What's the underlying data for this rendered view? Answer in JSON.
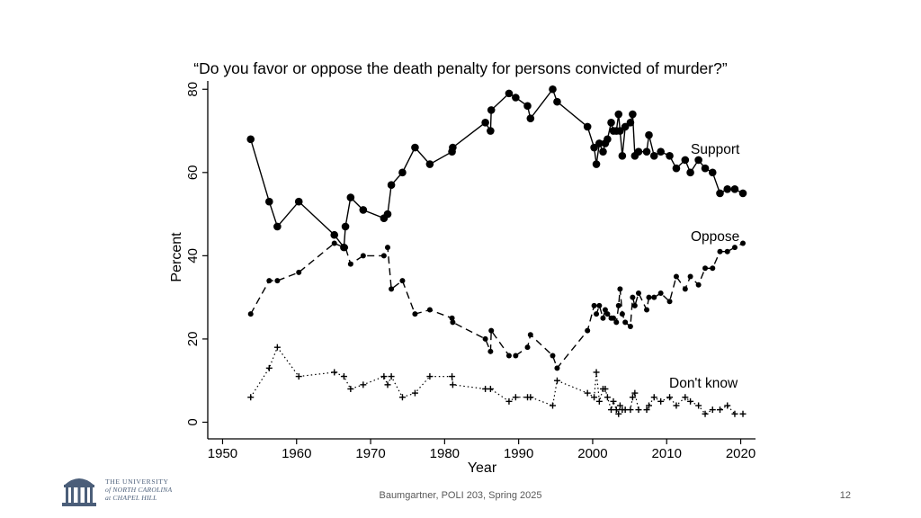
{
  "chart_data": {
    "type": "line",
    "title": "“Do you favor or oppose the death penalty for persons convicted of murder?”",
    "xlabel": "Year",
    "ylabel": "Percent",
    "xlim": [
      1948,
      2022
    ],
    "ylim": [
      -4,
      82
    ],
    "xticks": [
      "1950",
      "1960",
      "1970",
      "1980",
      "1990",
      "2000",
      "2010",
      "2020"
    ],
    "yticks": [
      "0",
      "20",
      "40",
      "60",
      "80"
    ],
    "series": [
      {
        "name": "Support",
        "style": "solid-circles",
        "points": [
          [
            1953.8,
            68
          ],
          [
            1956.3,
            53
          ],
          [
            1957.4,
            47
          ],
          [
            1960.3,
            53
          ],
          [
            1965.1,
            45
          ],
          [
            1966.4,
            42
          ],
          [
            1966.6,
            47
          ],
          [
            1967.3,
            54
          ],
          [
            1969,
            51
          ],
          [
            1971.8,
            49
          ],
          [
            1972.3,
            50
          ],
          [
            1972.8,
            57
          ],
          [
            1974.3,
            60
          ],
          [
            1976,
            66
          ],
          [
            1978,
            62
          ],
          [
            1981,
            65
          ],
          [
            1981.1,
            66
          ],
          [
            1985.5,
            72
          ],
          [
            1986.2,
            70
          ],
          [
            1986.3,
            75
          ],
          [
            1988.7,
            79
          ],
          [
            1989.6,
            78
          ],
          [
            1991.2,
            76
          ],
          [
            1991.6,
            73
          ],
          [
            1994.6,
            80
          ],
          [
            1995.2,
            77
          ],
          [
            1999.3,
            71
          ],
          [
            2000.2,
            66
          ],
          [
            2000.5,
            62
          ],
          [
            2000.9,
            67
          ],
          [
            2001.4,
            65
          ],
          [
            2001.7,
            67
          ],
          [
            2002,
            68
          ],
          [
            2002.5,
            72
          ],
          [
            2002.8,
            70
          ],
          [
            2003.2,
            70
          ],
          [
            2003.5,
            74
          ],
          [
            2003.7,
            70
          ],
          [
            2004,
            64
          ],
          [
            2004.4,
            71
          ],
          [
            2005.1,
            72
          ],
          [
            2005.4,
            74
          ],
          [
            2005.7,
            64
          ],
          [
            2006.2,
            65
          ],
          [
            2007.3,
            65
          ],
          [
            2007.6,
            69
          ],
          [
            2008.3,
            64
          ],
          [
            2009.2,
            65
          ],
          [
            2010.4,
            64
          ],
          [
            2011.3,
            61
          ],
          [
            2012.5,
            63
          ],
          [
            2013.2,
            60
          ],
          [
            2014.3,
            63
          ],
          [
            2015.2,
            61
          ],
          [
            2016.2,
            60
          ],
          [
            2017.2,
            55
          ],
          [
            2018.2,
            56
          ],
          [
            2019.2,
            56
          ],
          [
            2020.3,
            55
          ]
        ]
      },
      {
        "name": "Oppose",
        "style": "dashed-dots",
        "points": [
          [
            1953.8,
            26
          ],
          [
            1956.3,
            34
          ],
          [
            1957.4,
            34
          ],
          [
            1960.3,
            36
          ],
          [
            1965.1,
            43
          ],
          [
            1966.4,
            42
          ],
          [
            1966.6,
            42
          ],
          [
            1967.3,
            38
          ],
          [
            1969,
            40
          ],
          [
            1971.8,
            40
          ],
          [
            1972.3,
            42
          ],
          [
            1972.8,
            32
          ],
          [
            1974.3,
            34
          ],
          [
            1976,
            26
          ],
          [
            1978,
            27
          ],
          [
            1981,
            25
          ],
          [
            1981.1,
            24
          ],
          [
            1985.5,
            20
          ],
          [
            1986.2,
            17
          ],
          [
            1986.3,
            22
          ],
          [
            1988.7,
            16
          ],
          [
            1989.6,
            16
          ],
          [
            1991.2,
            18
          ],
          [
            1991.6,
            21
          ],
          [
            1994.6,
            16
          ],
          [
            1995.2,
            13
          ],
          [
            1999.3,
            22
          ],
          [
            2000.2,
            28
          ],
          [
            2000.5,
            26
          ],
          [
            2000.9,
            28
          ],
          [
            2001.4,
            25
          ],
          [
            2001.7,
            27
          ],
          [
            2002,
            26
          ],
          [
            2002.5,
            25
          ],
          [
            2002.8,
            25
          ],
          [
            2003.2,
            24
          ],
          [
            2003.5,
            28
          ],
          [
            2003.7,
            32
          ],
          [
            2004,
            26
          ],
          [
            2004.4,
            24
          ],
          [
            2005.1,
            23
          ],
          [
            2005.4,
            30
          ],
          [
            2005.7,
            28
          ],
          [
            2006.2,
            31
          ],
          [
            2007.3,
            27
          ],
          [
            2007.6,
            30
          ],
          [
            2008.3,
            30
          ],
          [
            2009.2,
            31
          ],
          [
            2010.4,
            29
          ],
          [
            2011.3,
            35
          ],
          [
            2012.5,
            32
          ],
          [
            2013.2,
            35
          ],
          [
            2014.3,
            33
          ],
          [
            2015.2,
            37
          ],
          [
            2016.2,
            37
          ],
          [
            2017.2,
            41
          ],
          [
            2018.2,
            41
          ],
          [
            2019.2,
            42
          ],
          [
            2020.3,
            43
          ]
        ]
      },
      {
        "name": "Don't know",
        "style": "dotted-plus",
        "points": [
          [
            1953.8,
            6
          ],
          [
            1956.3,
            13
          ],
          [
            1957.4,
            18
          ],
          [
            1960.3,
            11
          ],
          [
            1965.1,
            12
          ],
          [
            1966.4,
            11
          ],
          [
            1967.3,
            8
          ],
          [
            1969,
            9
          ],
          [
            1971.8,
            11
          ],
          [
            1972.3,
            9
          ],
          [
            1972.8,
            11
          ],
          [
            1974.3,
            6
          ],
          [
            1976,
            7
          ],
          [
            1978,
            11
          ],
          [
            1981,
            11
          ],
          [
            1981.1,
            9
          ],
          [
            1985.5,
            8
          ],
          [
            1986.2,
            8
          ],
          [
            1988.7,
            5
          ],
          [
            1989.6,
            6
          ],
          [
            1991.2,
            6
          ],
          [
            1991.6,
            6
          ],
          [
            1994.6,
            4
          ],
          [
            1995.2,
            10
          ],
          [
            1999.3,
            7
          ],
          [
            2000.2,
            6
          ],
          [
            2000.5,
            12
          ],
          [
            2000.9,
            5
          ],
          [
            2001.4,
            8
          ],
          [
            2001.7,
            8
          ],
          [
            2002,
            6
          ],
          [
            2002.5,
            3
          ],
          [
            2002.8,
            5
          ],
          [
            2003.2,
            3
          ],
          [
            2003.5,
            2
          ],
          [
            2003.7,
            4
          ],
          [
            2004,
            3
          ],
          [
            2004.4,
            3
          ],
          [
            2005.1,
            3
          ],
          [
            2005.4,
            6
          ],
          [
            2005.7,
            7
          ],
          [
            2006.2,
            3
          ],
          [
            2007.3,
            3
          ],
          [
            2007.6,
            4
          ],
          [
            2008.3,
            6
          ],
          [
            2009.2,
            5
          ],
          [
            2010.4,
            6
          ],
          [
            2011.3,
            4
          ],
          [
            2012.5,
            6
          ],
          [
            2013.2,
            5
          ],
          [
            2014.3,
            4
          ],
          [
            2015.2,
            2
          ],
          [
            2016.2,
            3
          ],
          [
            2017.2,
            3
          ],
          [
            2018.2,
            4
          ],
          [
            2019.2,
            2
          ],
          [
            2020.3,
            2
          ]
        ]
      }
    ],
    "labels": [
      "Support",
      "Oppose",
      "Don't know"
    ]
  },
  "logo": {
    "line1": "THE UNIVERSITY",
    "line2": "of NORTH CAROLINA",
    "line3": "at CHAPEL HILL",
    "color": "#4b5e79"
  },
  "footer": {
    "text": "Baumgartner, POLI 203, Spring 2025",
    "page_number": "12"
  }
}
